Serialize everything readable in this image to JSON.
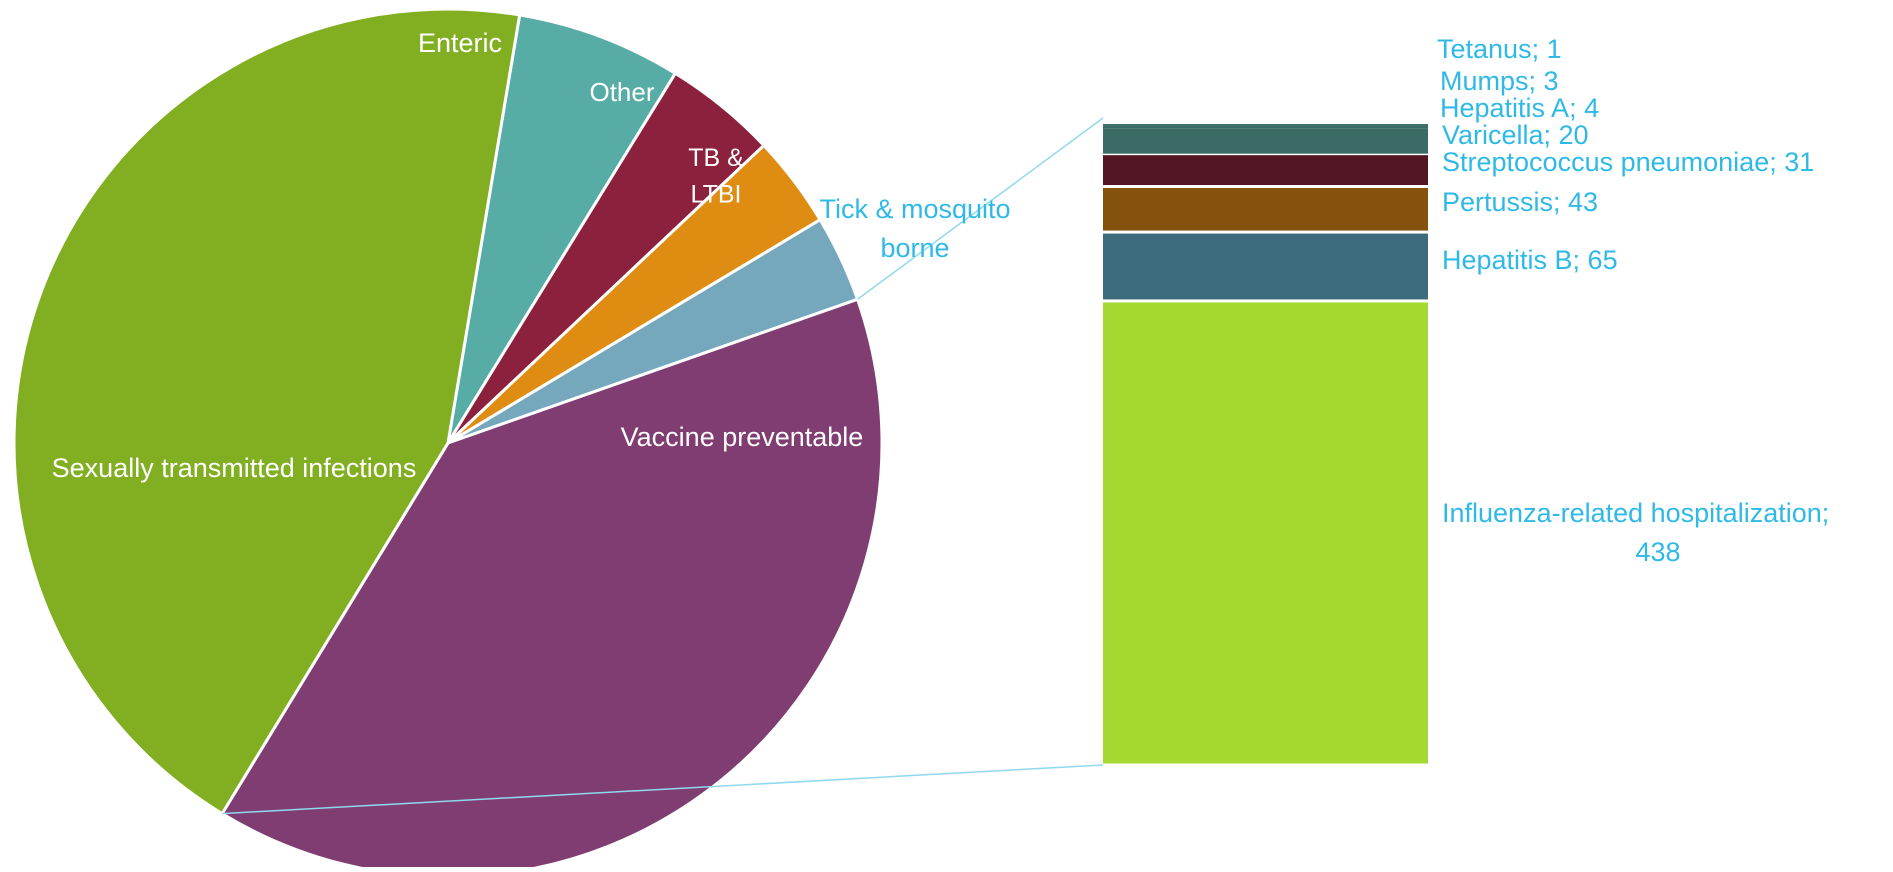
{
  "chart_data": [
    {
      "type": "pie",
      "slices": [
        {
          "label": "Enteric",
          "value": 95,
          "color": "#57ADA6",
          "label_color": "#ffffff"
        },
        {
          "label": "Other",
          "value": 65,
          "color": "#8B213D",
          "label_color": "#ffffff"
        },
        {
          "label": "TB &\nLTBI",
          "value": 53,
          "color": "#DF8C12",
          "label_color": "#ffffff"
        },
        {
          "label": "Tick & mosquito\nborne",
          "value": 50,
          "color": "#75A8BD",
          "label_color": "#2FB9E6"
        },
        {
          "label": "Vaccine preventable",
          "value": 605,
          "color": "#803D71",
          "label_color": "#ffffff"
        },
        {
          "label": "Sexually transmitted infections",
          "value": 680,
          "color": "#82AF22",
          "label_color": "#ffffff"
        }
      ],
      "scale_note": "Slice values estimated from angles; Vaccine preventable = 605 (sum of breakdown)."
    },
    {
      "type": "bar",
      "stacked": true,
      "parent": "Vaccine preventable",
      "series": [
        {
          "name": "Influenza-related hospitalization",
          "value": 438,
          "color": "#A4D931",
          "label": "Influenza-related hospitalization;\n438"
        },
        {
          "name": "Hepatitis B",
          "value": 65,
          "color": "#3C6B7C",
          "label": "Hepatitis B; 65"
        },
        {
          "name": "Pertussis",
          "value": 43,
          "color": "#84520D",
          "label": "Pertussis; 43"
        },
        {
          "name": "Streptococcus pneumoniae",
          "value": 31,
          "color": "#521624",
          "label": "Streptococcus pneumoniae; 31"
        },
        {
          "name": "Varicella",
          "value": 20,
          "color": "#3A6B64",
          "label": "Varicella; 20"
        },
        {
          "name": "Hepatitis A",
          "value": 4,
          "color": "#3A6B64",
          "label": "Hepatitis A; 4"
        },
        {
          "name": "Mumps",
          "value": 3,
          "color": "#3A6B64",
          "label": "Mumps; 3"
        },
        {
          "name": "Tetanus",
          "value": 1,
          "color": "#3A6B64",
          "label": "Tetanus; 1"
        }
      ],
      "label_color": "#2FB9E6"
    }
  ]
}
